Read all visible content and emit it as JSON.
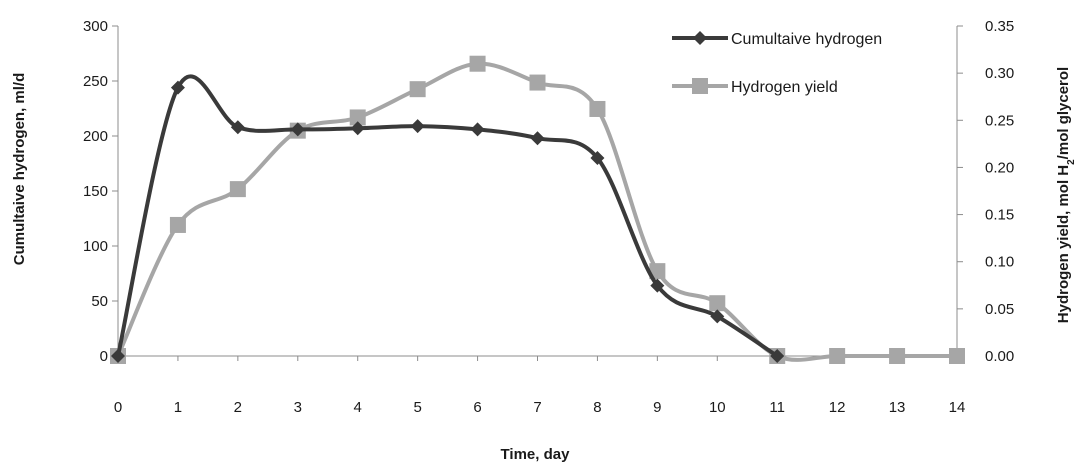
{
  "chart_data": {
    "type": "line",
    "title": "",
    "xlabel": "Time, day",
    "ylabel_left": "Cumultaive hydrogen, ml/d",
    "ylabel_right_parts": [
      "Hydrogen yield, mol H",
      "2",
      "/mol glycerol"
    ],
    "x": [
      0,
      1,
      2,
      3,
      4,
      5,
      6,
      7,
      8,
      9,
      10,
      11,
      12,
      13,
      14
    ],
    "x_tick_labels": [
      "0",
      "1",
      "2",
      "3",
      "4",
      "5",
      "6",
      "7",
      "8",
      "9",
      "10",
      "11",
      "12",
      "13",
      "14"
    ],
    "ylim_left": [
      0,
      300
    ],
    "y_ticks_left": [
      "0",
      "50",
      "100",
      "150",
      "200",
      "250",
      "300"
    ],
    "ylim_right": [
      0,
      0.35
    ],
    "y_ticks_right": [
      "0.00",
      "0.05",
      "0.10",
      "0.15",
      "0.20",
      "0.25",
      "0.30",
      "0.35"
    ],
    "grid": false,
    "legend_position": "top-right",
    "series": [
      {
        "name": "Cumultaive hydrogen",
        "axis": "left",
        "marker": "diamond",
        "color": "#3a3a3a",
        "x": [
          0,
          1,
          2,
          3,
          4,
          5,
          6,
          7,
          8,
          9,
          10,
          11
        ],
        "values": [
          0,
          244,
          208,
          206,
          207,
          209,
          206,
          198,
          180,
          64,
          36,
          0
        ]
      },
      {
        "name": "Hydrogen yield",
        "axis": "right",
        "marker": "square",
        "color": "#a6a6a6",
        "x": [
          0,
          1,
          2,
          3,
          4,
          5,
          6,
          7,
          8,
          9,
          10,
          11,
          12,
          13,
          14
        ],
        "values": [
          0,
          0.139,
          0.177,
          0.239,
          0.253,
          0.283,
          0.31,
          0.29,
          0.262,
          0.09,
          0.056,
          0,
          0,
          0,
          0
        ]
      }
    ]
  }
}
